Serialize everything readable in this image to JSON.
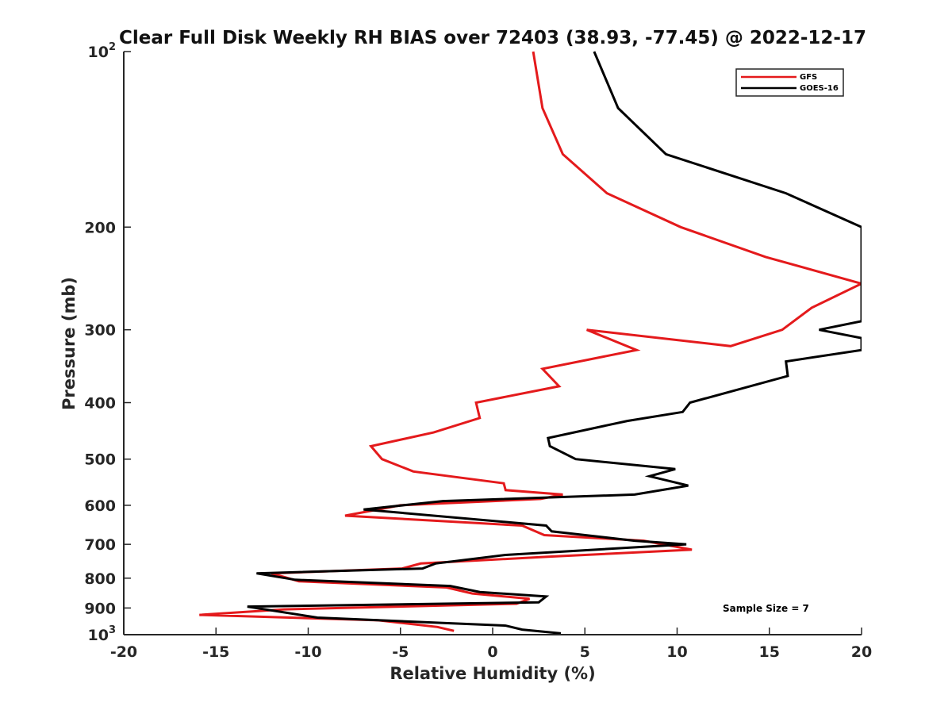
{
  "chart_data": {
    "type": "line",
    "title": "Clear Full Disk Weekly RH BIAS over 72403 (38.93, -77.45) @ 2022-12-17",
    "xlabel": "Relative Humidity (%)",
    "ylabel": "Pressure (mb)",
    "xlim": [
      -20,
      20
    ],
    "ylim": [
      100,
      1000
    ],
    "y_scale": "log",
    "y_reversed": true,
    "x_ticks": [
      "-20",
      "-15",
      "-10",
      "-5",
      "0",
      "5",
      "10",
      "15",
      "20"
    ],
    "y_ticks": [
      {
        "value": 100,
        "base": "10",
        "exp": "2"
      },
      {
        "value": 200,
        "base": "200",
        "exp": ""
      },
      {
        "value": 300,
        "base": "300",
        "exp": ""
      },
      {
        "value": 400,
        "base": "400",
        "exp": ""
      },
      {
        "value": 500,
        "base": "500",
        "exp": ""
      },
      {
        "value": 600,
        "base": "600",
        "exp": ""
      },
      {
        "value": 700,
        "base": "700",
        "exp": ""
      },
      {
        "value": 800,
        "base": "800",
        "exp": ""
      },
      {
        "value": 900,
        "base": "900",
        "exp": ""
      },
      {
        "value": 1000,
        "base": "10",
        "exp": "3"
      }
    ],
    "legend_position": "top-right",
    "grid": false,
    "annotation": "Sample Size = 7",
    "series": [
      {
        "name": "GFS",
        "color": "#e41a1c",
        "points": [
          [
            2.2,
            100
          ],
          [
            2.7,
            125
          ],
          [
            3.8,
            150
          ],
          [
            6.2,
            175
          ],
          [
            10.2,
            200
          ],
          [
            14.8,
            225
          ],
          [
            20.0,
            250
          ],
          [
            17.3,
            275
          ],
          [
            15.7,
            300
          ],
          [
            12.9,
            320
          ],
          [
            5.1,
            300
          ],
          [
            7.8,
            325
          ],
          [
            2.7,
            350
          ],
          [
            3.6,
            375
          ],
          [
            -0.9,
            400
          ],
          [
            -0.7,
            425
          ],
          [
            -3.2,
            450
          ],
          [
            -6.6,
            475
          ],
          [
            -6.0,
            500
          ],
          [
            -4.3,
            525
          ],
          [
            0.6,
            550
          ],
          [
            0.7,
            565
          ],
          [
            3.8,
            575
          ],
          [
            2.6,
            585
          ],
          [
            -5.0,
            600
          ],
          [
            -8.0,
            625
          ],
          [
            1.6,
            650
          ],
          [
            2.8,
            675
          ],
          [
            8.2,
            690
          ],
          [
            10.8,
            715
          ],
          [
            3.0,
            735
          ],
          [
            -3.9,
            755
          ],
          [
            -4.9,
            770
          ],
          [
            -12.0,
            785
          ],
          [
            -10.5,
            810
          ],
          [
            -2.5,
            830
          ],
          [
            -1.1,
            850
          ],
          [
            2.0,
            868
          ],
          [
            1.3,
            885
          ],
          [
            -11.3,
            905
          ],
          [
            -15.9,
            925
          ],
          [
            -6.2,
            945
          ],
          [
            -3.0,
            970
          ],
          [
            -2.1,
            985
          ]
        ]
      },
      {
        "name": "GOES-16",
        "color": "#000000",
        "points": [
          [
            5.5,
            100
          ],
          [
            6.8,
            125
          ],
          [
            9.4,
            150
          ],
          [
            15.9,
            175
          ],
          [
            20.0,
            200
          ],
          [
            20.0,
            290
          ],
          [
            17.7,
            300
          ],
          [
            20.0,
            310
          ],
          [
            20.0,
            325
          ],
          [
            15.9,
            340
          ],
          [
            16.0,
            360
          ],
          [
            10.7,
            400
          ],
          [
            10.3,
            415
          ],
          [
            7.3,
            430
          ],
          [
            3.0,
            460
          ],
          [
            3.1,
            475
          ],
          [
            4.5,
            500
          ],
          [
            9.9,
            520
          ],
          [
            8.5,
            535
          ],
          [
            10.6,
            555
          ],
          [
            7.7,
            575
          ],
          [
            -2.7,
            590
          ],
          [
            -7.0,
            610
          ],
          [
            2.9,
            650
          ],
          [
            3.2,
            665
          ],
          [
            7.7,
            690
          ],
          [
            10.5,
            700
          ],
          [
            0.7,
            730
          ],
          [
            -3.1,
            755
          ],
          [
            -3.8,
            770
          ],
          [
            -12.8,
            785
          ],
          [
            -10.7,
            805
          ],
          [
            -2.3,
            825
          ],
          [
            -0.7,
            845
          ],
          [
            2.9,
            860
          ],
          [
            2.5,
            880
          ],
          [
            -13.3,
            895
          ],
          [
            -9.5,
            935
          ],
          [
            0.7,
            965
          ],
          [
            1.6,
            980
          ],
          [
            3.7,
            995
          ]
        ]
      }
    ]
  }
}
